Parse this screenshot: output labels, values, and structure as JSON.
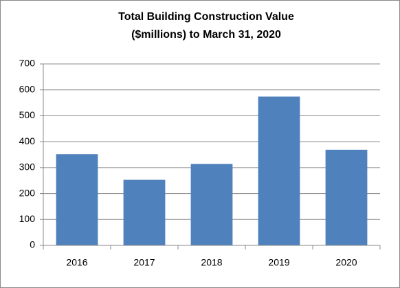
{
  "chart_data": {
    "type": "bar",
    "title": [
      "Total Building Construction Value",
      "($millions) to March 31, 2020"
    ],
    "categories": [
      "2016",
      "2017",
      "2018",
      "2019",
      "2020"
    ],
    "values": [
      352,
      253,
      314,
      574,
      369
    ],
    "color": "#4f81bd",
    "ylim": [
      0,
      700
    ],
    "yticks": [
      0,
      100,
      200,
      300,
      400,
      500,
      600,
      700
    ],
    "grid": true
  }
}
